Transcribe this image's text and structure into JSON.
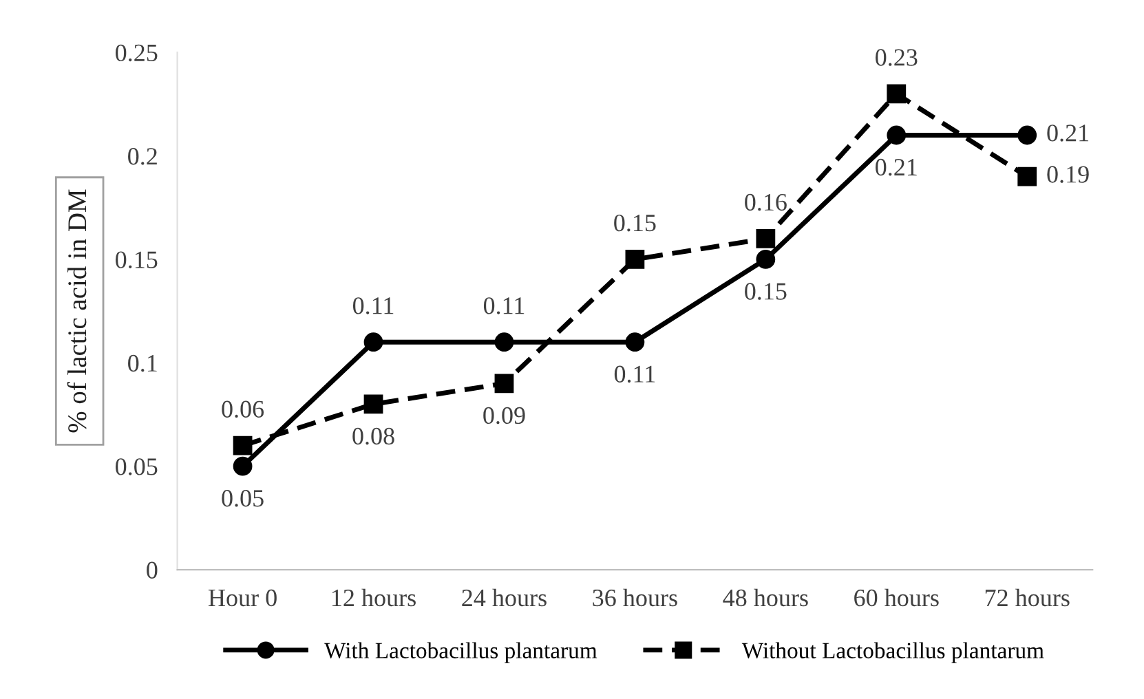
{
  "chart_data": {
    "type": "line",
    "ylabel": "% of lactic acid in DM",
    "categories": [
      "Hour 0",
      "12 hours",
      "24 hours",
      "36 hours",
      "48 hours",
      "60 hours",
      "72 hours"
    ],
    "series": [
      {
        "name": "With Lactobacillus plantarum",
        "color": "#000000",
        "marker": "circle",
        "line_style": "solid",
        "values": [
          0.05,
          0.11,
          0.11,
          0.11,
          0.15,
          0.21,
          0.21
        ]
      },
      {
        "name": "Without Lactobacillus plantarum",
        "color": "#000000",
        "marker": "square",
        "line_style": "dashed",
        "values": [
          0.06,
          0.08,
          0.09,
          0.15,
          0.16,
          0.23,
          0.19
        ]
      }
    ],
    "ylim": [
      0,
      0.25
    ],
    "yticks": [
      0,
      0.05,
      0.1,
      0.15,
      0.2,
      0.25
    ],
    "grid": false,
    "legend": "bottom",
    "data_labels": true
  }
}
